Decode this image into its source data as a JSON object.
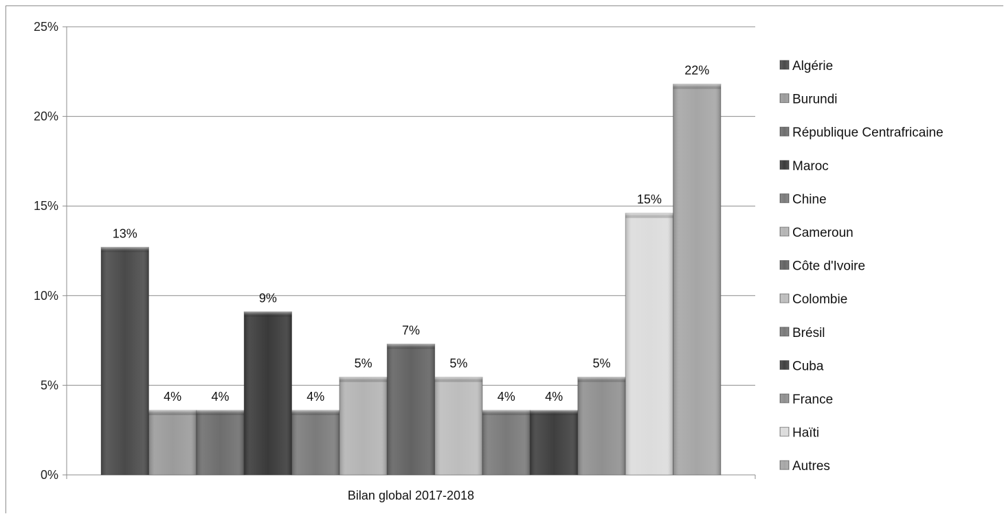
{
  "chart_data": {
    "type": "bar",
    "title": "",
    "xlabel": "",
    "ylabel": "",
    "categories": [
      "Bilan global 2017-2018"
    ],
    "ylim": [
      0,
      25
    ],
    "yticks": [
      "0%",
      "5%",
      "10%",
      "15%",
      "20%",
      "25%"
    ],
    "grid": true,
    "legend_position": "right",
    "series": [
      {
        "name": "Algérie",
        "values": [
          12.7
        ],
        "label": "13%",
        "color": "#4a4a4a"
      },
      {
        "name": "Burundi",
        "values": [
          3.6
        ],
        "label": "4%",
        "color": "#9b9b9b"
      },
      {
        "name": "République Centrafricaine",
        "values": [
          3.6
        ],
        "label": "4%",
        "color": "#6e6e6e"
      },
      {
        "name": "Maroc",
        "values": [
          9.1
        ],
        "label": "9%",
        "color": "#3a3a3a"
      },
      {
        "name": "Chine",
        "values": [
          3.6
        ],
        "label": "4%",
        "color": "#7b7b7b"
      },
      {
        "name": "Cameroun",
        "values": [
          5.45
        ],
        "label": "5%",
        "color": "#b4b4b4"
      },
      {
        "name": "Côte d'Ivoire",
        "values": [
          7.3
        ],
        "label": "7%",
        "color": "#636363"
      },
      {
        "name": "Colombie",
        "values": [
          5.45
        ],
        "label": "5%",
        "color": "#bdbdbd"
      },
      {
        "name": "Brésil",
        "values": [
          3.6
        ],
        "label": "4%",
        "color": "#7a7a7a"
      },
      {
        "name": "Cuba",
        "values": [
          3.6
        ],
        "label": "4%",
        "color": "#3f3f3f"
      },
      {
        "name": "France",
        "values": [
          5.45
        ],
        "label": "5%",
        "color": "#909090"
      },
      {
        "name": "Haïti",
        "values": [
          14.6
        ],
        "label": "15%",
        "color": "#dcdcdc"
      },
      {
        "name": "Autres",
        "values": [
          21.8
        ],
        "label": "22%",
        "color": "#a6a6a6"
      }
    ]
  }
}
